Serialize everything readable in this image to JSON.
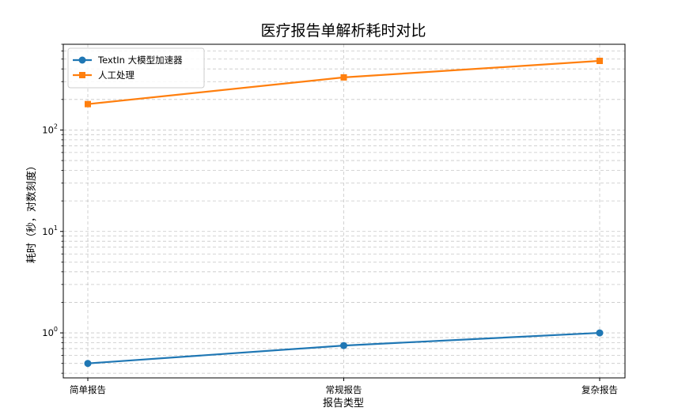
{
  "chart_data": {
    "type": "line",
    "title": "医疗报告单解析耗时对比",
    "xlabel": "报告类型",
    "ylabel": "耗时（秒，对数刻度）",
    "yscale": "log",
    "ylim": [
      0.36,
      700
    ],
    "grid": true,
    "legend_position": "top-left",
    "categories": [
      "简单报告",
      "常规报告",
      "复杂报告"
    ],
    "y_ticks": [
      {
        "base": "10",
        "exp": "0",
        "value": 1
      },
      {
        "base": "10",
        "exp": "1",
        "value": 10
      },
      {
        "base": "10",
        "exp": "2",
        "value": 100
      }
    ],
    "series": [
      {
        "name": "TextIn 大模型加速器",
        "values": [
          0.5,
          0.75,
          1.0
        ],
        "color": "#1f77b4",
        "marker": "circle"
      },
      {
        "name": "人工处理",
        "values": [
          180,
          330,
          480
        ],
        "color": "#ff7f0e",
        "marker": "square"
      }
    ]
  }
}
